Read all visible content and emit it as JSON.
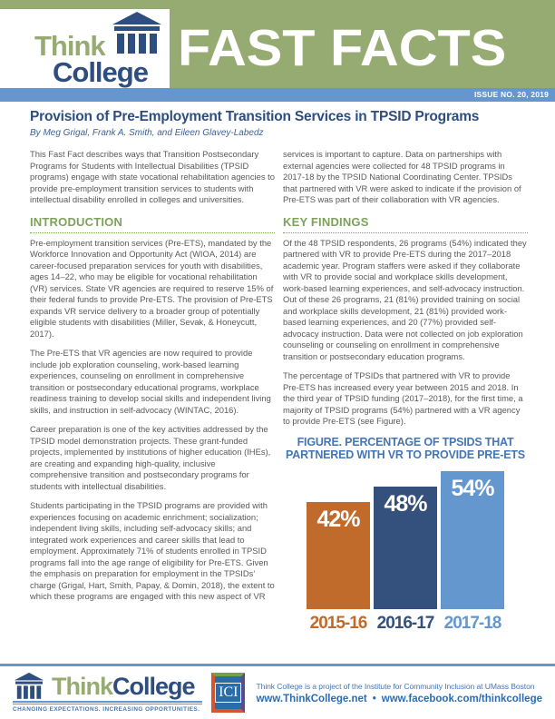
{
  "header": {
    "logo_think": "Think",
    "logo_college": "College",
    "banner_title": "FAST FACTS",
    "issue_label": "ISSUE NO. 20, 2019"
  },
  "article": {
    "title": "Provision of Pre-Employment Transition Services in TPSID Programs",
    "byline": "By Meg Grigal, Frank A. Smith, and Eileen Glavey-Labedz",
    "lede": "This Fast Fact describes ways that Transition Postsecondary Programs for Students with Intellectual Disabilities (TPSID programs) engage with state vocational rehabilitation agencies to provide pre-employment transition services to students with intellectual disability enrolled in colleges and universities.",
    "continuation": "services is important to capture. Data on partnerships with external agencies were collected for 48 TPSID programs in 2017-18 by the TPSID National Coordinating Center. TPSIDs that partnered with VR were asked to indicate if the provision of Pre-ETS was part of their collaboration with VR agencies."
  },
  "introduction": {
    "heading": "INTRODUCTION",
    "p1": "Pre-employment transition services (Pre-ETS), mandated by the Workforce Innovation and Opportunity Act (WIOA, 2014) are career-focused preparation services for youth with disabilities, ages 14–22, who may be eligible for vocational rehabilitation (VR) services. State VR agencies are required to reserve 15% of their federal funds to provide Pre-ETS. The provision of Pre-ETS expands VR service delivery to a broader group of potentially eligible students with disabilities (Miller, Sevak, & Honeycutt, 2017).",
    "p2": "The Pre-ETS that VR agencies are now required to provide include job exploration counseling, work-based learning experiences, counseling on enrollment in comprehensive transition or postsecondary educational programs, workplace readiness training to develop social skills and independent living skills, and instruction in self-advocacy (WINTAC, 2016).",
    "p3": "Career preparation is one of the key activities addressed by the TPSID model demonstration projects. These grant-funded projects, implemented by institutions of higher education (IHEs), are creating and expanding high-quality, inclusive comprehensive transition and postsecondary programs for students with intellectual disabilities.",
    "p4": "Students participating in the TPSID programs are provided with experiences focusing on academic enrichment; socialization; independent living skills, including self-advocacy skills; and integrated work experiences and career skills that lead to employment. Approximately 71% of students enrolled in TPSID programs fall into the age range of eligibility for Pre-ETS. Given the emphasis on preparation for employment in the TPSIDs’ charge (Grigal, Hart, Smith, Papay, & Domin, 2018), the extent to which these programs are engaged with this new aspect of VR"
  },
  "key_findings": {
    "heading": "KEY FINDINGS",
    "p1": "Of the 48 TPSID respondents, 26 programs (54%) indicated they partnered with VR to provide Pre-ETS during the 2017–2018 academic year. Program staffers were asked if they collaborate with VR to provide social and workplace skills development, work-based learning experiences, and self-advocacy instruction. Out of these 26 programs, 21 (81%) provided training on social and workplace skills development, 21 (81%) provided work-based learning experiences, and 20 (77%) provided self-advocacy instruction. Data were not collected on job exploration counseling or counseling on enrollment in comprehensive transition or postsecondary education programs.",
    "p2": "The percentage of TPSIDs that partnered with VR to provide Pre-ETS has increased every year between 2015 and 2018. In the third year of TPSID funding (2017–2018), for the first time, a majority of TPSID programs (54%) partnered with a VR agency to provide Pre-ETS (see Figure)."
  },
  "chart_data": {
    "type": "bar",
    "title_lines": [
      "FIGURE. PERCENTAGE OF TPSIDS THAT",
      "PARTNERED WITH VR TO PROVIDE PRE-ETS"
    ],
    "title": "FIGURE. PERCENTAGE OF TPSIDS THAT PARTNERED WITH VR TO PROVIDE PRE-ETS",
    "categories": [
      "2015-16",
      "2016-17",
      "2017-18"
    ],
    "values": [
      42,
      48,
      54
    ],
    "value_labels": [
      "42%",
      "48%",
      "54%"
    ],
    "bar_colors": [
      "#c06a2c",
      "#34507c",
      "#6497ce"
    ],
    "xlabel": "",
    "ylabel": "",
    "ylim": [
      0,
      54
    ],
    "grid": false,
    "legend": "none",
    "value_label_position": "inside-top",
    "category_label_colors_match_bars": true
  },
  "footer": {
    "logo_think": "Think",
    "logo_college": "College",
    "tagline": "CHANGING EXPECTATIONS. INCREASING OPPORTUNITIES.",
    "ici_label": "ICI",
    "credit": "Think College is a project of the Institute for Community Inclusion at UMass Boston",
    "url1": "www.ThinkCollege.net",
    "separator": "•",
    "url2": "www.facebook.com/thinkcollege"
  },
  "colors": {
    "band_green": "#96ab72",
    "brand_blue": "#2d4e7e",
    "issue_bar_blue": "#6596ce",
    "heading_green": "#7da25b",
    "body_gray": "#58595b",
    "figure_title_blue": "#4576b4",
    "bar_orange": "#c06a2c",
    "bar_navy": "#34507c",
    "bar_lightblue": "#6497ce"
  }
}
